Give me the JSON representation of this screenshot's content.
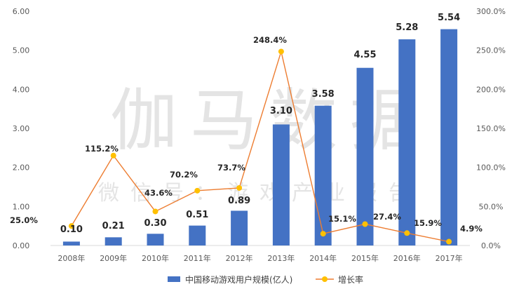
{
  "watermark": {
    "line1": "伽马数据",
    "line2": "微信号：游戏产业报告"
  },
  "chart_data": {
    "type": "bar",
    "categories": [
      "2008年",
      "2009年",
      "2010年",
      "2011年",
      "2012年",
      "2013年",
      "2014年",
      "2015年",
      "2016年",
      "2017年"
    ],
    "series": [
      {
        "name": "中国移动游戏用户规模(亿人)",
        "type": "bar",
        "axis": "left",
        "values": [
          0.1,
          0.21,
          0.3,
          0.51,
          0.89,
          3.1,
          3.58,
          4.55,
          5.28,
          5.54
        ],
        "labels": [
          "0.10",
          "0.21",
          "0.30",
          "0.51",
          "0.89",
          "3.10",
          "3.58",
          "4.55",
          "5.28",
          "5.54"
        ]
      },
      {
        "name": "增长率",
        "type": "line",
        "axis": "right",
        "values": [
          25.0,
          115.2,
          43.6,
          70.2,
          73.7,
          248.4,
          15.1,
          27.4,
          15.9,
          4.9
        ],
        "labels": [
          "25.0%",
          "115.2%",
          "43.6%",
          "70.2%",
          "73.7%",
          "248.4%",
          "15.1%",
          "27.4%",
          "15.9%",
          "4.9%"
        ]
      }
    ],
    "y_left": {
      "min": 0,
      "max": 6,
      "step": 1,
      "tick_labels": [
        "0.00",
        "1.00",
        "2.00",
        "3.00",
        "4.00",
        "5.00",
        "6.00"
      ]
    },
    "y_right": {
      "min": 0,
      "max": 300,
      "step": 50,
      "tick_labels": [
        "0.0%",
        "50.0%",
        "100.0%",
        "150.0%",
        "200.0%",
        "250.0%",
        "300.0%"
      ]
    },
    "grid": false,
    "legend_position": "bottom",
    "colors": {
      "bar": "#4472C4",
      "line": "#ED7D31",
      "marker": "#FFC000"
    }
  }
}
